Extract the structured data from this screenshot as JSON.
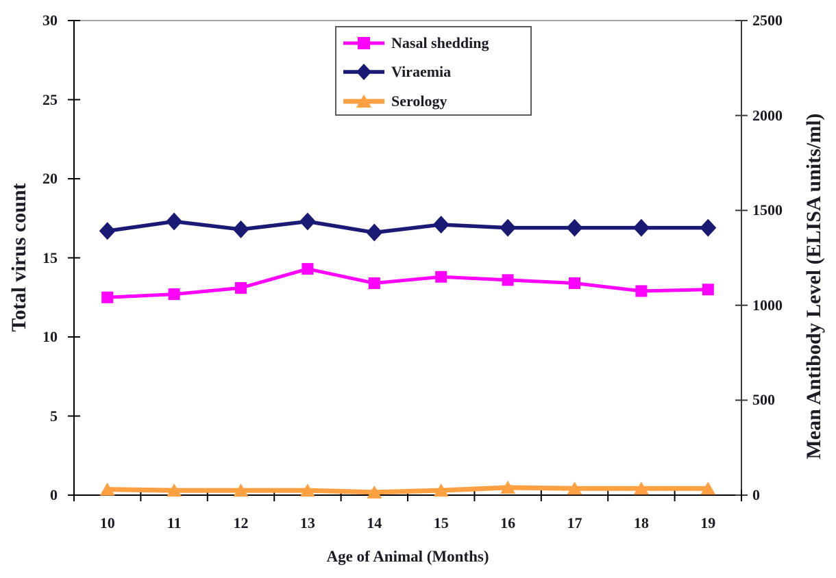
{
  "colors": {
    "nasal_shedding": "#FF00FF",
    "viraemia": "#1A1A75",
    "serology": "#FFA042",
    "axis_line": "#000000",
    "right_axis_line": "#3a3a3a",
    "top_border": "#A6A6A6",
    "text": "#1c1c24",
    "legend_border": "#595959"
  },
  "legend": {
    "items": [
      {
        "label": "Nasal shedding",
        "marker_icon": "square-marker-icon"
      },
      {
        "label": "Viraemia",
        "marker_icon": "diamond-marker-icon"
      },
      {
        "label": "Serology",
        "marker_icon": "triangle-marker-icon"
      }
    ]
  },
  "chart_data": {
    "type": "line",
    "title": "",
    "xlabel": "Age of Animal (Months)",
    "ylabel_left": "Total virus count",
    "ylabel_right": "Mean Antibody Level (ELISA units/ml)",
    "categories": [
      10,
      11,
      12,
      13,
      14,
      15,
      16,
      17,
      18,
      19
    ],
    "left_axis": {
      "min": 0,
      "max": 30,
      "ticks": [
        0,
        5,
        10,
        15,
        20,
        25,
        30
      ]
    },
    "right_axis": {
      "min": 0,
      "max": 2500,
      "ticks": [
        0,
        500,
        1000,
        1500,
        2000,
        2500
      ]
    },
    "grid": false,
    "legend_position": "top-center-inside",
    "series": [
      {
        "name": "Nasal shedding",
        "axis": "left",
        "marker": "square",
        "color": "#FF00FF",
        "line_width": 5,
        "values": [
          12.5,
          12.7,
          13.1,
          14.3,
          13.4,
          13.8,
          13.6,
          13.4,
          12.9,
          13.0
        ]
      },
      {
        "name": "Viraemia",
        "axis": "left",
        "marker": "diamond",
        "color": "#1A1A75",
        "line_width": 5.5,
        "values": [
          16.7,
          17.3,
          16.8,
          17.3,
          16.6,
          17.1,
          16.9,
          16.9,
          16.9,
          16.9
        ]
      },
      {
        "name": "Serology",
        "axis": "right",
        "marker": "triangle",
        "color": "#FFA042",
        "line_width": 7,
        "values": [
          30,
          25,
          25,
          25,
          15,
          25,
          40,
          35,
          35,
          35
        ]
      }
    ]
  }
}
